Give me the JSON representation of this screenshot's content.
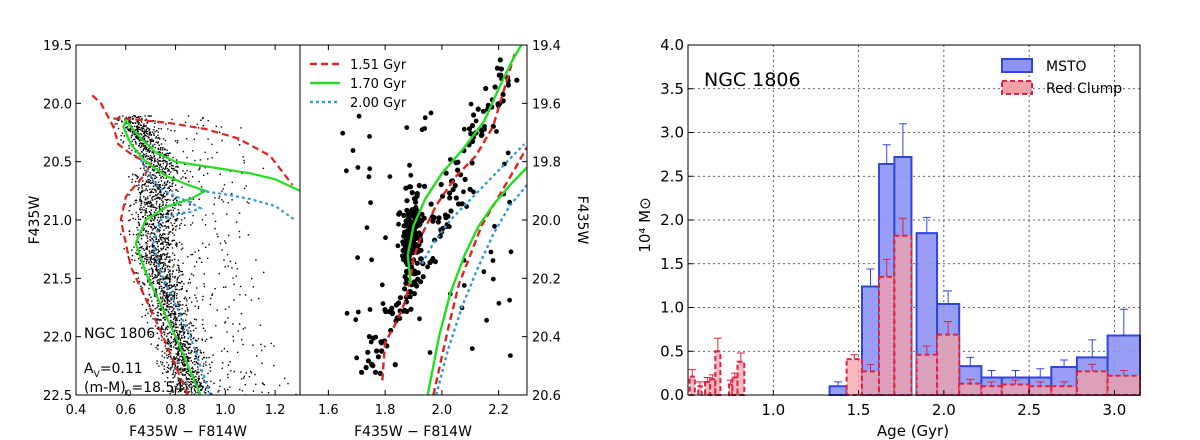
{
  "chart_data": [
    {
      "type": "scatter",
      "panel": "cmd-left",
      "xlabel": "F435W − F814W",
      "ylabel": "F435W",
      "xlim": [
        0.4,
        1.3
      ],
      "ylim": [
        22.5,
        19.5
      ],
      "xticks": [
        "0.4",
        "0.6",
        "0.8",
        "1.0",
        "1.2"
      ],
      "yticks": [
        "19.5",
        "20.0",
        "20.5",
        "21.0",
        "21.5",
        "22.0",
        "22.5"
      ],
      "annotations": {
        "cluster": "NGC 1806",
        "av": "A",
        "av_sub": "V",
        "av_val": "=0.11",
        "dm": "(m-M)",
        "dm_sub": "0",
        "dm_val": "=18.54"
      },
      "isochrones": [
        {
          "name": "1.51 Gyr",
          "color": "#dd2222",
          "dash": "dashed",
          "points": [
            [
              0.85,
              22.5
            ],
            [
              0.74,
              21.95
            ],
            [
              0.62,
              21.4
            ],
            [
              0.58,
              21.0
            ],
            [
              0.6,
              20.8
            ],
            [
              0.68,
              20.6
            ],
            [
              0.7,
              20.52
            ],
            [
              0.63,
              20.45
            ],
            [
              0.57,
              20.35
            ],
            [
              0.55,
              20.2
            ],
            [
              0.5,
              20.0
            ],
            [
              0.46,
              19.92
            ]
          ]
        },
        {
          "name": "1.51 Gyr",
          "color": "#dd2222",
          "dash": "dashed",
          "points": [
            [
              0.55,
              20.13
            ],
            [
              0.65,
              20.14
            ],
            [
              0.78,
              20.17
            ],
            [
              0.92,
              20.22
            ],
            [
              1.05,
              20.3
            ],
            [
              1.18,
              20.45
            ],
            [
              1.27,
              20.7
            ]
          ]
        },
        {
          "name": "1.70 Gyr",
          "color": "#22dd22",
          "dash": "solid",
          "points": [
            [
              0.9,
              22.5
            ],
            [
              0.8,
              22.0
            ],
            [
              0.68,
              21.45
            ],
            [
              0.64,
              21.2
            ],
            [
              0.68,
              21.0
            ],
            [
              0.77,
              20.88
            ],
            [
              0.86,
              20.82
            ],
            [
              0.92,
              20.75
            ],
            [
              0.85,
              20.7
            ],
            [
              0.76,
              20.62
            ],
            [
              0.68,
              20.5
            ],
            [
              0.62,
              20.35
            ],
            [
              0.59,
              20.2
            ],
            [
              0.6,
              20.15
            ],
            [
              0.66,
              20.3
            ],
            [
              0.72,
              20.42
            ],
            [
              0.8,
              20.5
            ]
          ]
        },
        {
          "name": "1.70 Gyr",
          "color": "#22dd22",
          "dash": "solid",
          "points": [
            [
              0.8,
              20.5
            ],
            [
              0.95,
              20.55
            ],
            [
              1.1,
              20.6
            ],
            [
              1.2,
              20.65
            ],
            [
              1.3,
              20.75
            ]
          ]
        },
        {
          "name": "2.00 Gyr",
          "color": "#3399dd",
          "dash": "dotted",
          "points": [
            [
              0.94,
              22.5
            ],
            [
              0.86,
              22.0
            ],
            [
              0.74,
              21.45
            ],
            [
              0.71,
              21.2
            ],
            [
              0.74,
              21.0
            ],
            [
              0.8,
              20.95
            ],
            [
              0.86,
              20.93
            ],
            [
              0.9,
              20.9
            ],
            [
              0.86,
              20.85
            ],
            [
              0.78,
              20.78
            ],
            [
              0.72,
              20.7
            ],
            [
              0.68,
              20.55
            ],
            [
              0.65,
              20.45
            ]
          ]
        },
        {
          "name": "2.00 Gyr",
          "color": "#3399dd",
          "dash": "dotted",
          "points": [
            [
              0.9,
              20.75
            ],
            [
              1.0,
              20.78
            ],
            [
              1.1,
              20.82
            ],
            [
              1.2,
              20.88
            ],
            [
              1.28,
              21.0
            ]
          ]
        }
      ]
    },
    {
      "type": "scatter",
      "panel": "cmd-right",
      "xlabel": "F435W − F814W",
      "ylabel": "F435W",
      "xlim": [
        1.5,
        2.3
      ],
      "ylim": [
        20.6,
        19.4
      ],
      "xticks": [
        "1.6",
        "1.8",
        "2.0",
        "2.2"
      ],
      "yticks": [
        "19.4",
        "19.6",
        "19.8",
        "20.0",
        "20.2",
        "20.4",
        "20.6"
      ],
      "legend": [
        "1.51 Gyr",
        "1.70 Gyr",
        "2.00 Gyr"
      ],
      "isochrones": [
        {
          "name": "1.51 Gyr",
          "color": "#dd2222",
          "dash": "dashed",
          "points": [
            [
              1.79,
              20.55
            ],
            [
              1.8,
              20.42
            ],
            [
              1.84,
              20.35
            ],
            [
              1.87,
              20.28
            ],
            [
              1.89,
              20.2
            ],
            [
              1.9,
              20.13
            ],
            [
              1.93,
              20.05
            ],
            [
              1.98,
              19.95
            ],
            [
              2.05,
              19.85
            ],
            [
              2.12,
              19.78
            ],
            [
              2.18,
              19.68
            ],
            [
              2.22,
              19.55
            ],
            [
              2.26,
              19.42
            ]
          ]
        },
        {
          "name": "1.51 Gyr",
          "color": "#dd2222",
          "dash": "dashed",
          "points": [
            [
              1.97,
              20.6
            ],
            [
              2.02,
              20.38
            ],
            [
              2.06,
              20.22
            ],
            [
              2.1,
              20.12
            ],
            [
              2.14,
              20.02
            ],
            [
              2.2,
              19.92
            ],
            [
              2.26,
              19.82
            ],
            [
              2.3,
              19.75
            ]
          ]
        },
        {
          "name": "1.70 Gyr",
          "color": "#22dd22",
          "dash": "solid",
          "points": [
            [
              1.89,
              20.22
            ],
            [
              1.88,
              20.12
            ],
            [
              1.9,
              20.02
            ],
            [
              1.94,
              19.93
            ],
            [
              2.0,
              19.84
            ],
            [
              2.08,
              19.75
            ],
            [
              2.15,
              19.66
            ],
            [
              2.2,
              19.55
            ],
            [
              2.25,
              19.45
            ],
            [
              2.28,
              19.4
            ]
          ]
        },
        {
          "name": "1.70 Gyr",
          "color": "#22dd22",
          "dash": "solid",
          "points": [
            [
              1.95,
              20.6
            ],
            [
              1.99,
              20.4
            ],
            [
              2.03,
              20.25
            ],
            [
              2.08,
              20.12
            ],
            [
              2.13,
              20.02
            ],
            [
              2.18,
              19.95
            ],
            [
              2.24,
              19.88
            ],
            [
              2.3,
              19.82
            ]
          ]
        },
        {
          "name": "2.00 Gyr",
          "color": "#3399dd",
          "dash": "dotted",
          "points": [
            [
              1.98,
              20.6
            ],
            [
              2.02,
              20.45
            ],
            [
              2.07,
              20.3
            ],
            [
              2.12,
              20.18
            ],
            [
              2.18,
              20.05
            ],
            [
              2.24,
              19.95
            ],
            [
              2.3,
              19.88
            ]
          ]
        },
        {
          "name": "2.00 Gyr",
          "color": "#3399dd",
          "dash": "dotted",
          "points": [
            [
              1.93,
              20.15
            ],
            [
              1.97,
              20.08
            ],
            [
              2.03,
              20.0
            ],
            [
              2.1,
              19.93
            ],
            [
              2.17,
              19.86
            ],
            [
              2.23,
              19.8
            ],
            [
              2.29,
              19.74
            ]
          ]
        }
      ]
    },
    {
      "type": "bar",
      "panel": "sfh-histogram",
      "title": "NGC 1806",
      "xlabel": "Age (Gyr)",
      "ylabel": "10⁴ M⊙",
      "xlim": [
        0.5,
        3.15
      ],
      "ylim": [
        0,
        4.0
      ],
      "xticks": [
        "1.0",
        "1.5",
        "2.0",
        "2.5",
        "3.0"
      ],
      "yticks": [
        "0.0",
        "0.5",
        "1.0",
        "1.5",
        "2.0",
        "2.5",
        "3.0",
        "3.5",
        "4.0"
      ],
      "grid": true,
      "legend_position": "top-right",
      "series": [
        {
          "name": "MSTO",
          "color": "#3344dd",
          "fill": "#8c93f2",
          "bins": [
            [
              1.33,
              1.43,
              0.1
            ],
            [
              1.52,
              1.62,
              1.24
            ],
            [
              1.62,
              1.71,
              2.64
            ],
            [
              1.71,
              1.81,
              2.72
            ],
            [
              1.84,
              1.96,
              1.85
            ],
            [
              1.96,
              2.09,
              1.04
            ],
            [
              2.09,
              2.22,
              0.33
            ],
            [
              2.22,
              2.34,
              0.2
            ],
            [
              2.34,
              2.5,
              0.2
            ],
            [
              2.5,
              2.63,
              0.2
            ],
            [
              2.63,
              2.78,
              0.32
            ],
            [
              2.78,
              2.96,
              0.43
            ],
            [
              2.96,
              3.15,
              0.68
            ]
          ],
          "errors": [
            0.05,
            0.2,
            0.22,
            0.38,
            0.18,
            0.15,
            0.1,
            0.08,
            0.08,
            0.1,
            0.08,
            0.2,
            0.3
          ]
        },
        {
          "name": "Red Clump",
          "color": "#dd2244",
          "fill": "#f4a0a8",
          "bins": [
            [
              0.51,
              0.54,
              0.21
            ],
            [
              0.56,
              0.58,
              0.1
            ],
            [
              0.6,
              0.63,
              0.15
            ],
            [
              0.63,
              0.66,
              0.18
            ],
            [
              0.66,
              0.69,
              0.5
            ],
            [
              0.74,
              0.76,
              0.12
            ],
            [
              0.76,
              0.79,
              0.2
            ],
            [
              0.79,
              0.83,
              0.38
            ],
            [
              1.43,
              1.52,
              0.41
            ],
            [
              1.52,
              1.62,
              0.27
            ],
            [
              1.62,
              1.71,
              1.35
            ],
            [
              1.71,
              1.81,
              1.82
            ],
            [
              1.84,
              1.96,
              0.46
            ],
            [
              1.96,
              2.09,
              0.69
            ],
            [
              2.09,
              2.22,
              0.13
            ],
            [
              2.22,
              2.34,
              0.1
            ],
            [
              2.34,
              2.5,
              0.12
            ],
            [
              2.5,
              2.63,
              0.1
            ],
            [
              2.63,
              2.78,
              0.1
            ],
            [
              2.78,
              2.96,
              0.27
            ],
            [
              2.96,
              3.15,
              0.22
            ]
          ],
          "errors": [
            0.08,
            0.05,
            0.05,
            0.05,
            0.15,
            0.05,
            0.05,
            0.1,
            0.05,
            0.08,
            0.2,
            0.2,
            0.1,
            0.15,
            0.05,
            0.05,
            0.05,
            0.05,
            0.05,
            0.08,
            0.06
          ]
        }
      ]
    }
  ]
}
